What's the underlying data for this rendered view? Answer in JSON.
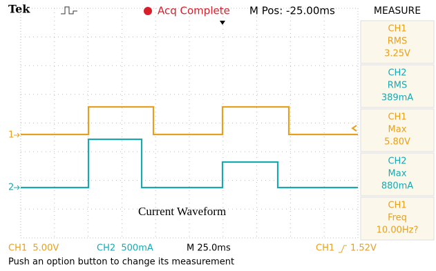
{
  "header": {
    "brand": "Tek",
    "status": "Acq Complete",
    "position": "M Pos: -25.00ms",
    "menu": "MEASURE"
  },
  "channel_markers": [
    "1",
    "2"
  ],
  "measurements": [
    {
      "source": "CH1",
      "type": "RMS",
      "value": "3.25V"
    },
    {
      "source": "CH2",
      "type": "RMS",
      "value": "389mA"
    },
    {
      "source": "CH1",
      "type": "Max",
      "value": "5.80V"
    },
    {
      "source": "CH2",
      "type": "Max",
      "value": "880mA"
    },
    {
      "source": "CH1",
      "type": "Freq",
      "value": "10.00Hz?"
    }
  ],
  "annotation": "Current Waveform",
  "footer": {
    "ch1_scale": "CH1  5.00V",
    "ch2_scale": "CH2  500mA",
    "timebase": "M 25.0ms",
    "trigger_source": "CH1",
    "trigger_level": "1.52V",
    "message": "Push an option button to change its measurement"
  }
}
